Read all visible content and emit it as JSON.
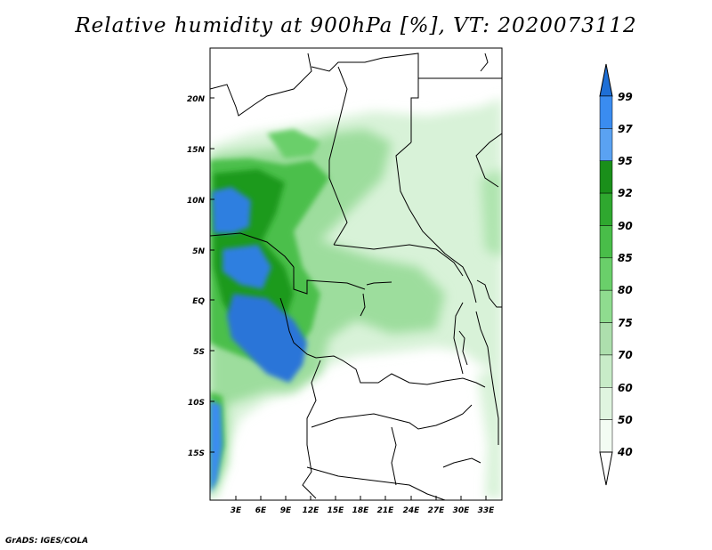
{
  "title": "Relative humidity at 900hPa [%], VT: 2020073112",
  "footer": "GrADS: IGES/COLA",
  "map": {
    "lat_labels": [
      "20N",
      "15N",
      "10N",
      "5N",
      "EQ",
      "5S",
      "10S",
      "15S"
    ],
    "lon_labels": [
      "3E",
      "6E",
      "9E",
      "12E",
      "15E",
      "18E",
      "21E",
      "24E",
      "27E",
      "30E",
      "33E"
    ]
  },
  "colorbar": {
    "levels": [
      "99",
      "97",
      "95",
      "92",
      "90",
      "85",
      "80",
      "75",
      "70",
      "60",
      "50",
      "40"
    ],
    "colors": [
      "#1e6fd6",
      "#3a8cf0",
      "#5aa2f2",
      "#1a8f1a",
      "#2fa82f",
      "#49bd49",
      "#6acf6a",
      "#8fdc8f",
      "#addfad",
      "#c8ecc8",
      "#e0f5e0",
      "#f3fcf3"
    ]
  }
}
